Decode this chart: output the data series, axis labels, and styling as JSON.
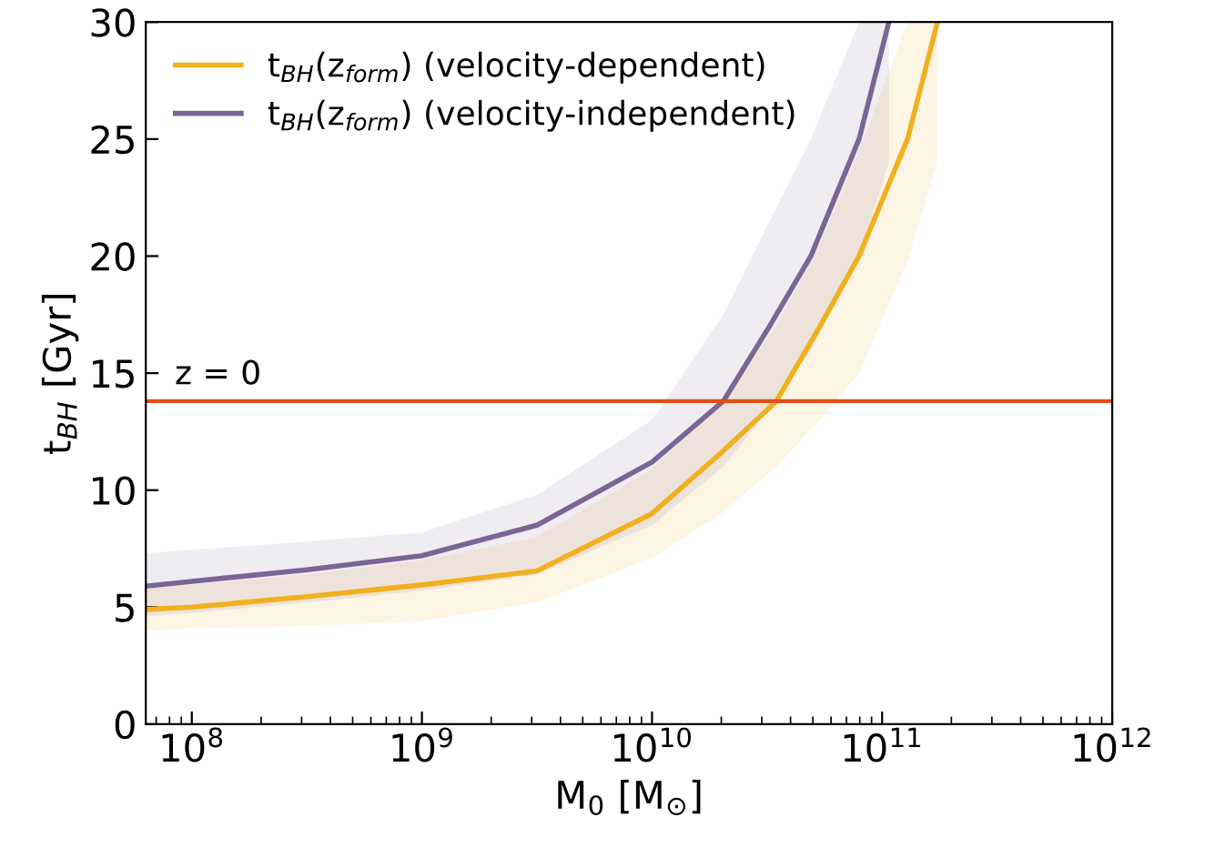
{
  "chart_data": {
    "type": "line",
    "xlabel": "M$_{0}$ [M$_{⊙}$]",
    "ylabel": "t$_{BH}$ [Gyr]",
    "log": "x",
    "xlim": [
      63100000.0,
      1000000000000.0
    ],
    "ylim": [
      0,
      30
    ],
    "xticks": [
      {
        "value": 100000000.0,
        "label": "10$^{8}$"
      },
      {
        "value": 1000000000.0,
        "label": "10$^{9}$"
      },
      {
        "value": 10000000000.0,
        "label": "10$^{10}$"
      },
      {
        "value": 100000000000.0,
        "label": "10$^{11}$"
      },
      {
        "value": 1000000000000.0,
        "label": "10$^{12}$"
      }
    ],
    "yticks": [
      0,
      5,
      10,
      15,
      20,
      25,
      30
    ],
    "grid": false,
    "legend": "top left",
    "marker": "none",
    "line_style": "solid",
    "ref_lines": [
      {
        "axis": "y",
        "value": 13.8,
        "color": "#e0501a"
      }
    ],
    "annotations": [
      "z = 0"
    ],
    "series": [
      {
        "name": "t$_{BH}$(z$_{form}$) (velocity-dependent)",
        "color": "#f0b020",
        "x": [
          63100000.0,
          100000000.0,
          316000000.0,
          1000000000.0,
          3160000000.0,
          10000000000.0,
          20000000000.0,
          34700000000.0,
          53700000000.0,
          79400000000.0,
          129000000000.0,
          174000000000.0
        ],
        "values": [
          4.9,
          5.0,
          5.45,
          5.95,
          6.55,
          9.0,
          11.6,
          13.8,
          17,
          20,
          25,
          30
        ],
        "lower": [
          4.0,
          4.1,
          4.2,
          4.4,
          5.2,
          7.1,
          9.0,
          11.0,
          13.0,
          15.0,
          19.8,
          24
        ],
        "upper": [
          5.8,
          5.95,
          6.4,
          7.0,
          8.0,
          10.9,
          13.8,
          17,
          20.5,
          24.5,
          30,
          30
        ]
      },
      {
        "name": "t$_{BH}$(z$_{form}$) (velocity-independent)",
        "color": "#7a6595",
        "x": [
          63100000.0,
          100000000.0,
          316000000.0,
          1000000000.0,
          3160000000.0,
          10000000000.0,
          20400000000.0,
          32400000000.0,
          49000000000.0,
          79400000000.0,
          107000000000.0
        ],
        "values": [
          5.9,
          6.1,
          6.6,
          7.2,
          8.5,
          11.2,
          13.8,
          17,
          20,
          25,
          30
        ],
        "lower": [
          4.6,
          4.75,
          5.2,
          5.7,
          6.4,
          8.5,
          11.0,
          13.5,
          16,
          20,
          24
        ],
        "upper": [
          7.3,
          7.45,
          7.8,
          8.2,
          9.8,
          13.0,
          17.5,
          21.5,
          25,
          30,
          30
        ]
      }
    ]
  }
}
